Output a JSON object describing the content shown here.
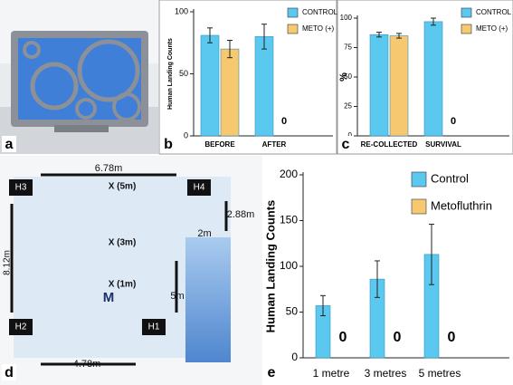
{
  "chart_data": [
    {
      "type": "bar",
      "y_label": "Human Landing Counts",
      "categories": [
        "BEFORE",
        "AFTER"
      ],
      "series": [
        {
          "name": "CONTROL",
          "color": "#5bc8f0",
          "values": [
            81,
            80
          ],
          "errors": [
            6,
            10
          ]
        },
        {
          "name": "METO (+)",
          "color": "#f6c870",
          "values": [
            70,
            0
          ],
          "errors": [
            7,
            0
          ]
        }
      ],
      "ylim": [
        0,
        100
      ],
      "yticks": [
        0,
        50,
        100
      ],
      "legend": "upper right"
    },
    {
      "type": "bar",
      "y_label": "%",
      "categories": [
        "RE-COLLECTED",
        "SURVIVAL"
      ],
      "series": [
        {
          "name": "CONTROL",
          "color": "#5bc8f0",
          "values": [
            86,
            97
          ],
          "errors": [
            2,
            3
          ]
        },
        {
          "name": "METO (+)",
          "color": "#f6c870",
          "values": [
            85,
            0
          ],
          "errors": [
            2,
            0
          ]
        }
      ],
      "ylim": [
        0,
        100
      ],
      "yticks": [
        0,
        25,
        50,
        75,
        100
      ],
      "legend": "upper right"
    },
    {
      "type": "bar",
      "y_label": "Human Landing Counts",
      "categories": [
        "1 metre",
        "3 metres",
        "5 metres"
      ],
      "series": [
        {
          "name": "Control",
          "color": "#5bc8f0",
          "values": [
            57,
            86,
            113
          ],
          "errors": [
            11,
            20,
            33
          ]
        },
        {
          "name": "Metofluthrin",
          "color": "#f6c870",
          "values": [
            0,
            0,
            0
          ],
          "errors": [
            0,
            0,
            0
          ]
        }
      ],
      "ylim": [
        0,
        200
      ],
      "yticks": [
        0,
        50,
        100,
        150,
        200
      ],
      "legend": "upper right"
    }
  ],
  "panel_labels": [
    "a",
    "b",
    "c",
    "d",
    "e"
  ],
  "diagram": {
    "labels": [
      "6.78m",
      "H3",
      "H4",
      "X (5m)",
      "2.88m",
      "8.12m",
      "X (3m)",
      "2m",
      "X (1m)",
      "M",
      "5m",
      "H2",
      "H1",
      "4.78m"
    ]
  }
}
